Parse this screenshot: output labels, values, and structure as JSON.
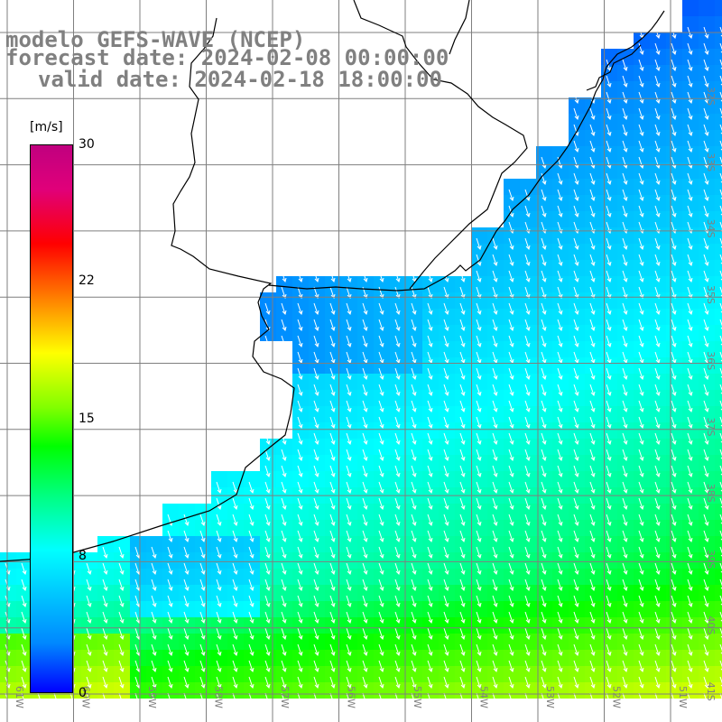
{
  "title": {
    "line1": "modelo GEFS-WAVE (NCEP)",
    "line2": "forecast date: 2024-02-08 00:00:00",
    "line3": "valid date: 2024-02-18 18:00:00"
  },
  "colorbar": {
    "unit": "[m/s]",
    "ticks": [
      {
        "value": 30,
        "label": "30"
      },
      {
        "value": 22,
        "label": "22"
      },
      {
        "value": 15,
        "label": "15"
      },
      {
        "value": 8,
        "label": "8"
      },
      {
        "value": 0,
        "label": "0"
      }
    ]
  },
  "longitude_labels": [
    "61W",
    "60W",
    "59W",
    "58W",
    "57W",
    "56W",
    "55W",
    "54W",
    "53W",
    "52W",
    "51W"
  ],
  "latitude_labels": [
    "32S",
    "33S",
    "34S",
    "35S",
    "36S",
    "37S",
    "38S",
    "39S",
    "40S",
    "41S"
  ],
  "colors": {
    "land": "#ffffff",
    "grid": "#7f7f7f",
    "coast": "#000000",
    "label": "#808080",
    "arrow": "#ffffff"
  }
}
